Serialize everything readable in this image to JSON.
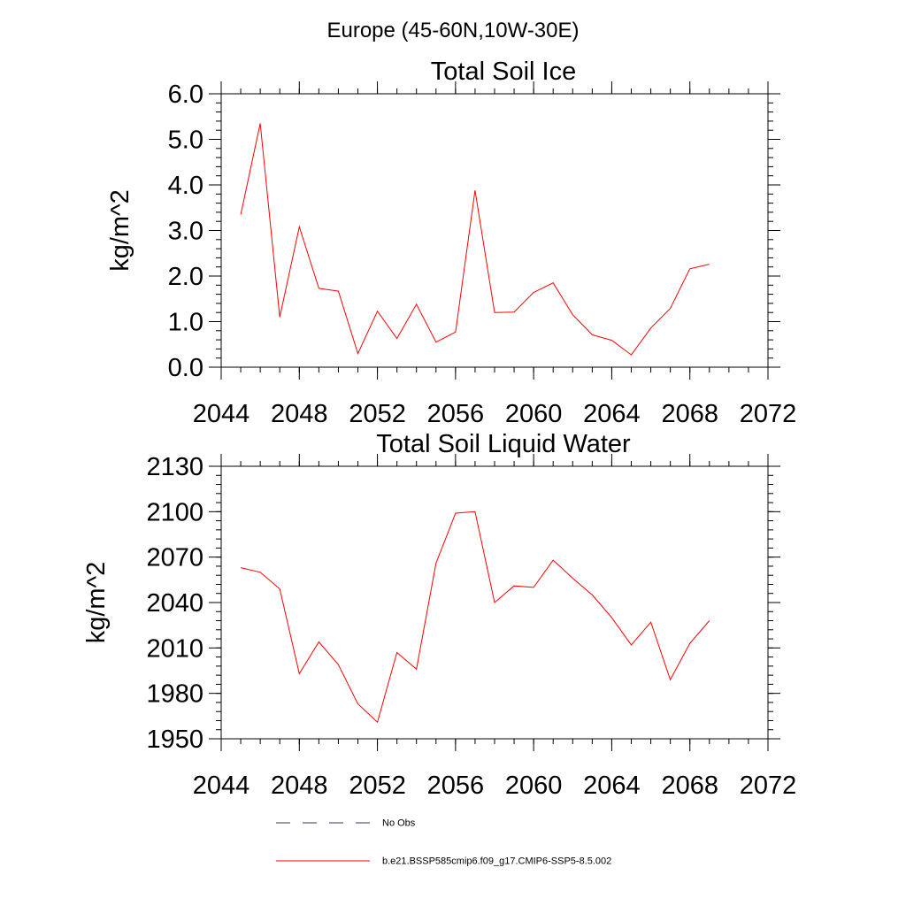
{
  "figure_title": "Europe (45-60N,10W-30E)",
  "chart_data": [
    {
      "type": "line",
      "title": "Total Soil Ice",
      "ylabel": "kg/m^2",
      "xlabel": "",
      "xlim": [
        2044,
        2072
      ],
      "ylim": [
        0,
        6
      ],
      "xticks": [
        2044,
        2048,
        2052,
        2056,
        2060,
        2064,
        2068,
        2072
      ],
      "xtick_labels": [
        "2044",
        "2048",
        "2052",
        "2056",
        "2060",
        "2064",
        "2068",
        "2072"
      ],
      "yticks": [
        0,
        1,
        2,
        3,
        4,
        5,
        6
      ],
      "ytick_labels": [
        "0.0",
        "1.0",
        "2.0",
        "3.0",
        "4.0",
        "5.0",
        "6.0"
      ],
      "grid": false,
      "series": [
        {
          "name": "b.e21.BSSP585cmip6.f09_g17.CMIP6-SSP5-8.5.002",
          "color": "#ff0000",
          "x": [
            2045,
            2046,
            2047,
            2048,
            2049,
            2050,
            2051,
            2052,
            2053,
            2054,
            2055,
            2056,
            2057,
            2058,
            2059,
            2060,
            2061,
            2062,
            2063,
            2064,
            2065,
            2066,
            2067,
            2068,
            2069
          ],
          "values": [
            3.35,
            5.35,
            1.1,
            3.08,
            1.73,
            1.67,
            0.3,
            1.23,
            0.63,
            1.38,
            0.55,
            0.77,
            3.88,
            1.2,
            1.21,
            1.64,
            1.85,
            1.15,
            0.71,
            0.59,
            0.27,
            0.86,
            1.29,
            2.16,
            2.26
          ]
        }
      ]
    },
    {
      "type": "line",
      "title": "Total Soil Liquid Water",
      "ylabel": "kg/m^2",
      "xlabel": "",
      "xlim": [
        2044,
        2072
      ],
      "ylim": [
        1950,
        2130
      ],
      "xticks": [
        2044,
        2048,
        2052,
        2056,
        2060,
        2064,
        2068,
        2072
      ],
      "xtick_labels": [
        "2044",
        "2048",
        "2052",
        "2056",
        "2060",
        "2064",
        "2068",
        "2072"
      ],
      "yticks": [
        1950,
        1980,
        2010,
        2040,
        2070,
        2100,
        2130
      ],
      "ytick_labels": [
        "1950",
        "1980",
        "2010",
        "2040",
        "2070",
        "2100",
        "2130"
      ],
      "grid": false,
      "series": [
        {
          "name": "b.e21.BSSP585cmip6.f09_g17.CMIP6-SSP5-8.5.002",
          "color": "#ff0000",
          "x": [
            2045,
            2046,
            2047,
            2048,
            2049,
            2050,
            2051,
            2052,
            2053,
            2054,
            2055,
            2056,
            2057,
            2058,
            2059,
            2060,
            2061,
            2062,
            2063,
            2064,
            2065,
            2066,
            2067,
            2068,
            2069
          ],
          "values": [
            2063,
            2060,
            2049,
            1993,
            2014,
            1999,
            1973,
            1961,
            2007,
            1996,
            2066,
            2099,
            2100,
            2040,
            2051,
            2050,
            2068,
            2056,
            2045,
            2030,
            2012,
            2027,
            1989,
            2013,
            2028
          ]
        }
      ]
    }
  ],
  "legend": {
    "placement": "bottom",
    "entries": [
      {
        "label": "No Obs",
        "style": "dashed",
        "color": "#333366"
      },
      {
        "label": "b.e21.BSSP585cmip6.f09_g17.CMIP6-SSP5-8.5.002",
        "style": "solid",
        "color": "#ff0000"
      }
    ]
  }
}
